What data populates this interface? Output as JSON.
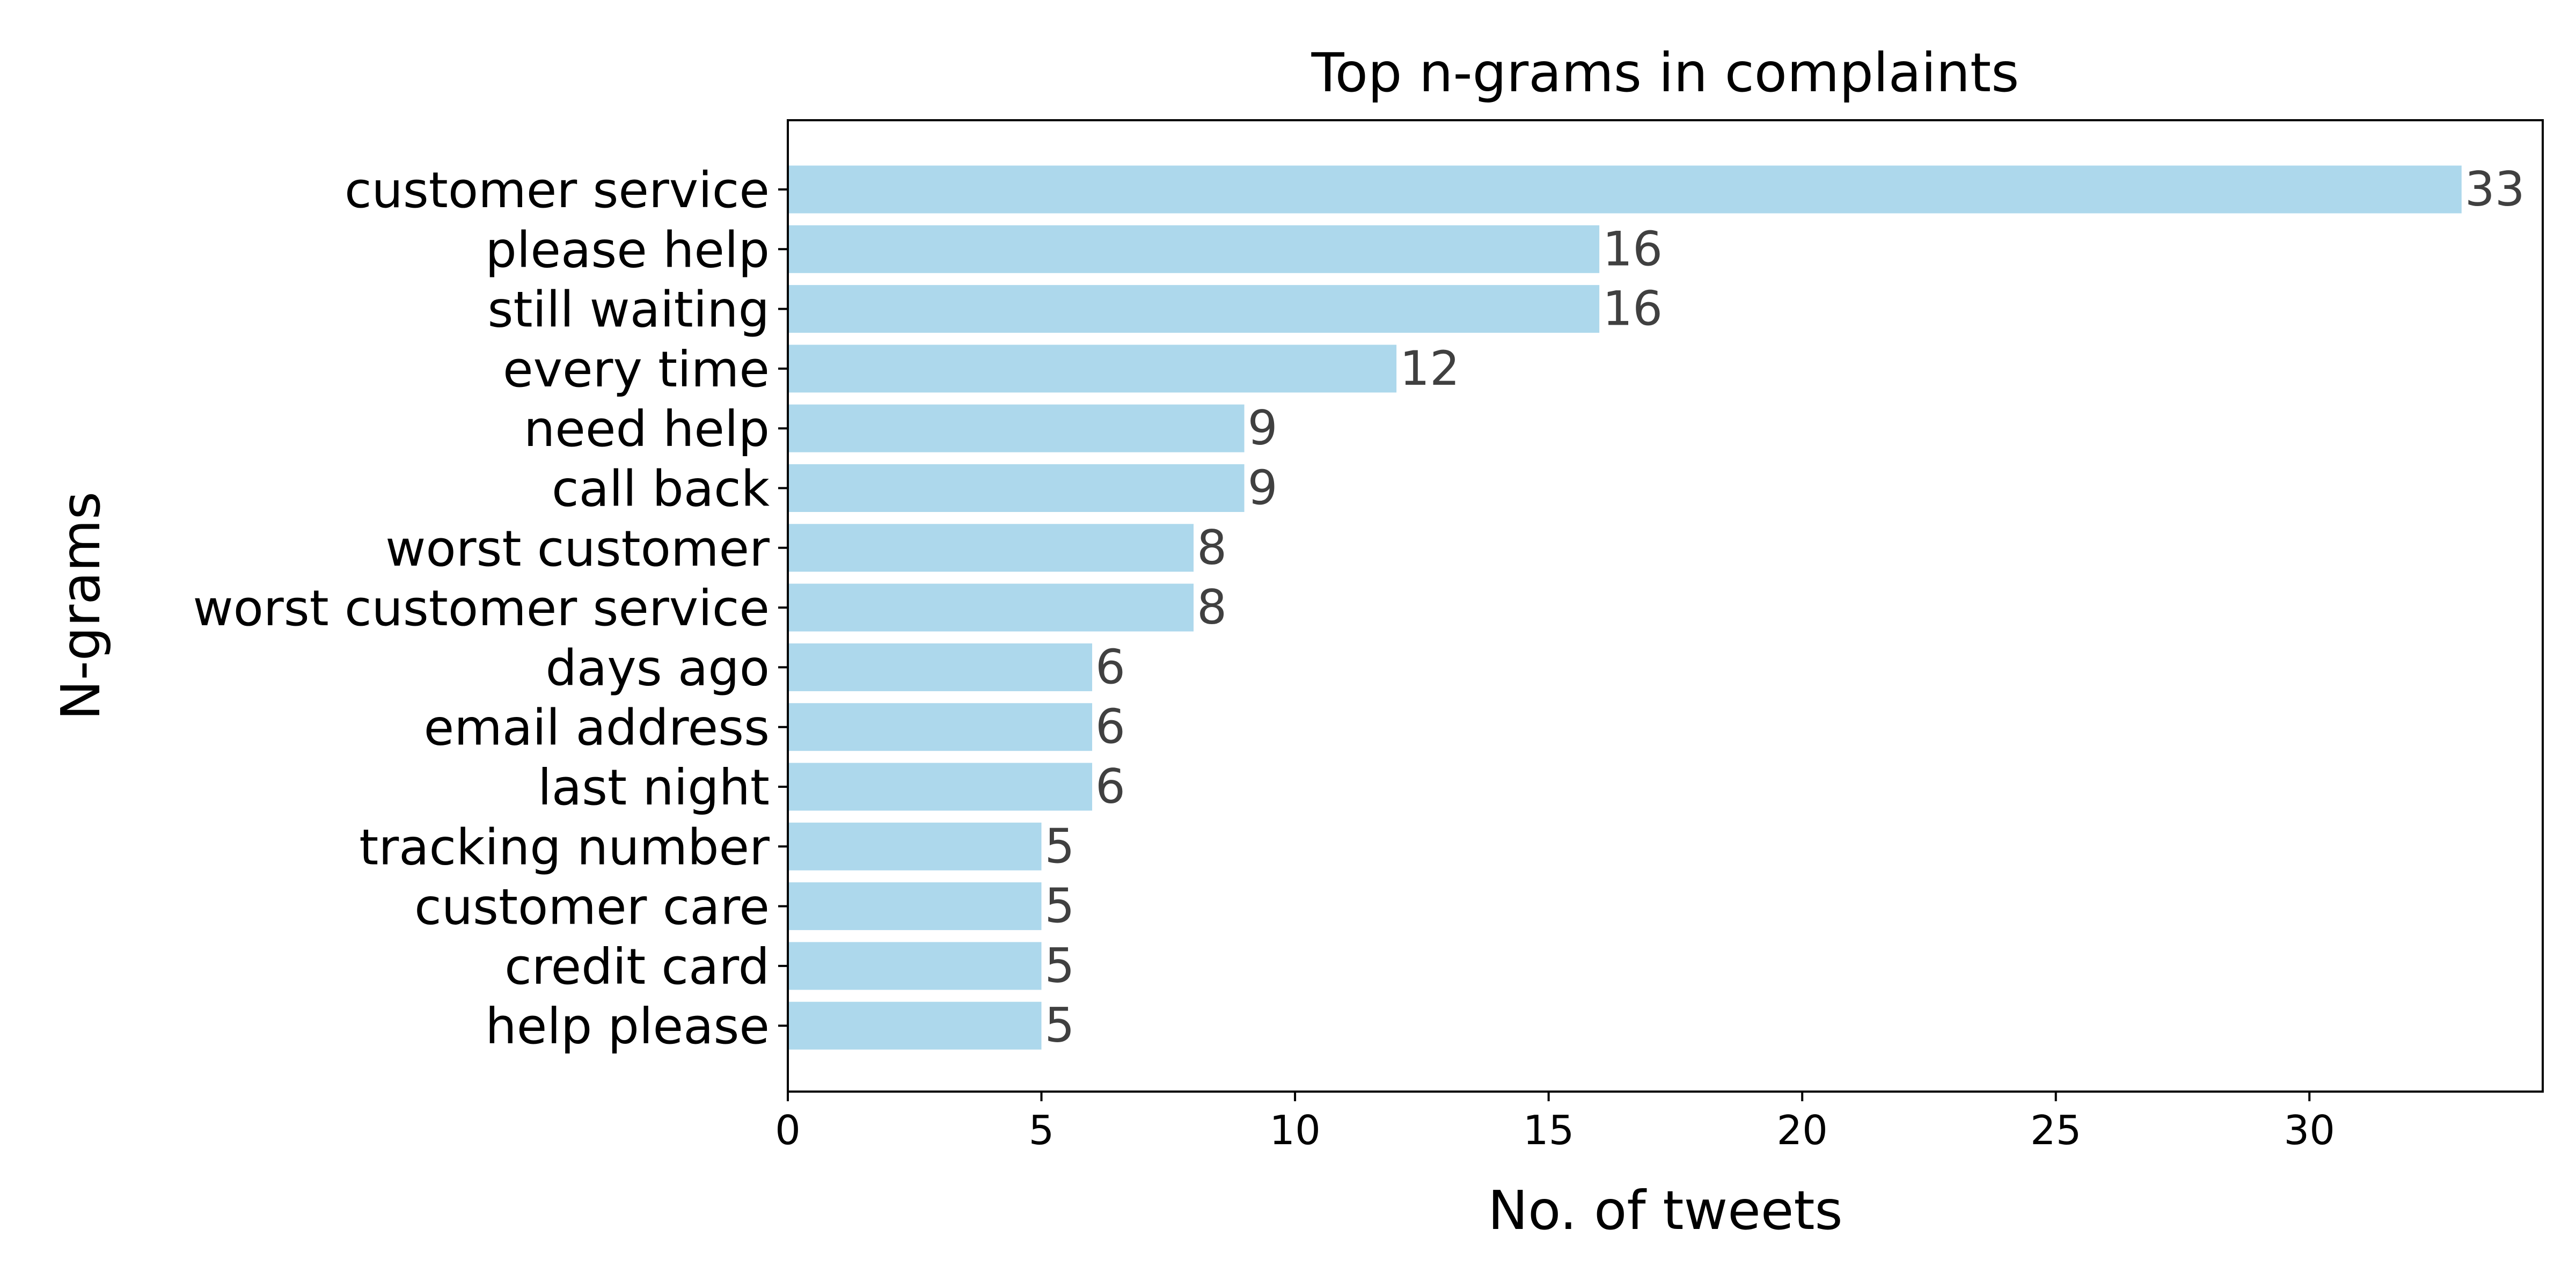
{
  "chart_data": {
    "type": "bar",
    "orientation": "horizontal",
    "title": "Top n-grams in complaints",
    "xlabel": "No. of tweets",
    "ylabel": "N-grams",
    "categories": [
      "customer service",
      "please help",
      "still waiting",
      "every time",
      "need help",
      "call back",
      "worst customer",
      "worst customer service",
      "days ago",
      "email address",
      "last night",
      "tracking number",
      "customer care",
      "credit card",
      "help please"
    ],
    "values": [
      33,
      16,
      16,
      12,
      9,
      9,
      8,
      8,
      6,
      6,
      6,
      5,
      5,
      5,
      5
    ],
    "data_labels": [
      "33",
      "16",
      "16",
      "12",
      "9",
      "9",
      "8",
      "8",
      "6",
      "6",
      "6",
      "5",
      "5",
      "5",
      "5"
    ],
    "xlim": [
      0,
      34.6
    ],
    "x_ticks": [
      0,
      5,
      10,
      15,
      20,
      25,
      30
    ],
    "x_tick_labels": [
      "0",
      "5",
      "10",
      "15",
      "20",
      "25",
      "30"
    ],
    "grid": false,
    "legend": "none",
    "bar_color": "#add8ec",
    "label_color": "#404040"
  }
}
